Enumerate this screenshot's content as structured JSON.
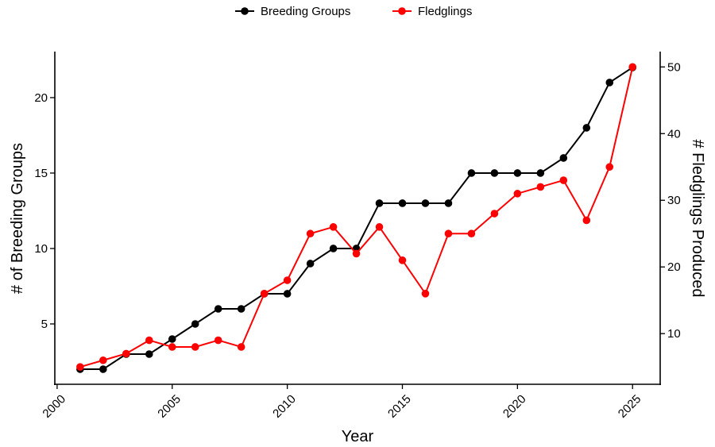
{
  "chart_data": {
    "type": "line",
    "title": "",
    "xlabel": "Year",
    "ylabel": "# of Breeding Groups",
    "y2label": "# Fledglings Produced",
    "xlim": [
      1999.9,
      2026.2
    ],
    "ylim": [
      1.0,
      23.05
    ],
    "y2lim": [
      2.4,
      52.3
    ],
    "xticks": [
      2000,
      2005,
      2010,
      2015,
      2020,
      2025
    ],
    "yticks": [
      5,
      10,
      15,
      20
    ],
    "y2ticks": [
      10,
      20,
      30,
      40,
      50
    ],
    "grid": false,
    "legend_position": "top",
    "x": [
      2001,
      2002,
      2003,
      2004,
      2005,
      2006,
      2007,
      2008,
      2009,
      2010,
      2011,
      2012,
      2013,
      2014,
      2015,
      2016,
      2017,
      2018,
      2019,
      2020,
      2021,
      2022,
      2023,
      2024,
      2025
    ],
    "series": [
      {
        "name": "Breeding Groups",
        "axis": "left",
        "color": "#000000",
        "values": [
          2,
          2,
          3,
          3,
          4,
          5,
          6,
          6,
          7,
          7,
          9,
          10,
          10,
          13,
          13,
          13,
          13,
          15,
          15,
          15,
          15,
          16,
          18,
          21,
          22
        ]
      },
      {
        "name": "Fledglings",
        "axis": "right",
        "color": "#ff0000",
        "values": [
          5,
          6,
          7,
          9,
          8,
          8,
          9,
          8,
          16,
          18,
          25,
          26,
          22,
          26,
          21,
          16,
          25,
          25,
          28,
          31,
          32,
          33,
          27,
          35,
          50
        ]
      }
    ]
  }
}
